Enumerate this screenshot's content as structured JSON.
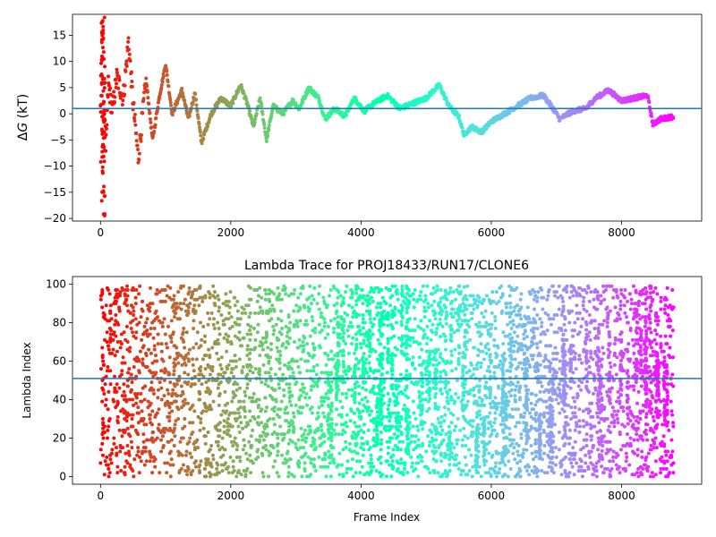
{
  "chart_data": [
    {
      "type": "scatter",
      "title": "",
      "xlabel": "",
      "ylabel": "ΔG (kT)",
      "ylabel_parts": {
        "delta": "Δ",
        "var": "G",
        "unit": " (kT)"
      },
      "xlim": [
        -430,
        9230
      ],
      "ylim": [
        -20.5,
        19.0
      ],
      "xticks": [
        0,
        2000,
        4000,
        6000,
        8000
      ],
      "yticks": [
        -20,
        -15,
        -10,
        -5,
        0,
        5,
        10,
        15
      ],
      "hline": {
        "y": 1.0,
        "color": "#1f77b4"
      },
      "colormap": "rainbow (red at start → violet at end of run)",
      "trace_segments": [
        {
          "x": 0,
          "y": 0.0
        },
        {
          "x": 40,
          "y": 18.5
        },
        {
          "x": 80,
          "y": -8.0
        },
        {
          "x": 120,
          "y": 6.0
        },
        {
          "x": 180,
          "y": 0.5
        },
        {
          "x": 250,
          "y": 7.0
        },
        {
          "x": 350,
          "y": 3.0
        },
        {
          "x": 430,
          "y": 14.0
        },
        {
          "x": 500,
          "y": 2.0
        },
        {
          "x": 580,
          "y": -8.5
        },
        {
          "x": 700,
          "y": 6.5
        },
        {
          "x": 800,
          "y": -5.0
        },
        {
          "x": 900,
          "y": 3.0
        },
        {
          "x": 1000,
          "y": 9.5
        },
        {
          "x": 1100,
          "y": 0.0
        },
        {
          "x": 1250,
          "y": 4.5
        },
        {
          "x": 1350,
          "y": -1.0
        },
        {
          "x": 1450,
          "y": 4.0
        },
        {
          "x": 1550,
          "y": -5.5
        },
        {
          "x": 1700,
          "y": 0.0
        },
        {
          "x": 1850,
          "y": 3.0
        },
        {
          "x": 2000,
          "y": 1.5
        },
        {
          "x": 2150,
          "y": 5.5
        },
        {
          "x": 2250,
          "y": 2.0
        },
        {
          "x": 2350,
          "y": -2.5
        },
        {
          "x": 2450,
          "y": 3.0
        },
        {
          "x": 2550,
          "y": -5.0
        },
        {
          "x": 2650,
          "y": 1.5
        },
        {
          "x": 2800,
          "y": 0.0
        },
        {
          "x": 2950,
          "y": 2.5
        },
        {
          "x": 3050,
          "y": 1.0
        },
        {
          "x": 3200,
          "y": 5.0
        },
        {
          "x": 3350,
          "y": 3.0
        },
        {
          "x": 3450,
          "y": -1.0
        },
        {
          "x": 3600,
          "y": 1.0
        },
        {
          "x": 3750,
          "y": -0.5
        },
        {
          "x": 3900,
          "y": 3.0
        },
        {
          "x": 4050,
          "y": 0.5
        },
        {
          "x": 4200,
          "y": 2.0
        },
        {
          "x": 4400,
          "y": 3.5
        },
        {
          "x": 4600,
          "y": 1.0
        },
        {
          "x": 4800,
          "y": 2.0
        },
        {
          "x": 5000,
          "y": 3.0
        },
        {
          "x": 5200,
          "y": 5.5
        },
        {
          "x": 5350,
          "y": 1.5
        },
        {
          "x": 5500,
          "y": -0.5
        },
        {
          "x": 5580,
          "y": -4.0
        },
        {
          "x": 5700,
          "y": -2.5
        },
        {
          "x": 5850,
          "y": -3.5
        },
        {
          "x": 6000,
          "y": -1.5
        },
        {
          "x": 6200,
          "y": 0.0
        },
        {
          "x": 6400,
          "y": 1.5
        },
        {
          "x": 6600,
          "y": 3.0
        },
        {
          "x": 6800,
          "y": 3.5
        },
        {
          "x": 6950,
          "y": 1.0
        },
        {
          "x": 7050,
          "y": -1.0
        },
        {
          "x": 7250,
          "y": 0.5
        },
        {
          "x": 7450,
          "y": 1.0
        },
        {
          "x": 7600,
          "y": 3.0
        },
        {
          "x": 7800,
          "y": 4.5
        },
        {
          "x": 8000,
          "y": 2.5
        },
        {
          "x": 8200,
          "y": 3.0
        },
        {
          "x": 8400,
          "y": 3.5
        },
        {
          "x": 8480,
          "y": -2.0
        },
        {
          "x": 8600,
          "y": -1.0
        },
        {
          "x": 8800,
          "y": -0.5
        }
      ],
      "trace_extent": {
        "x_start": 0,
        "x_end": 8800
      }
    },
    {
      "type": "scatter",
      "title": "Lambda Trace for PROJ18433/RUN17/CLONE6",
      "xlabel": "Frame Index",
      "ylabel": "Lambda Index",
      "xlim": [
        -430,
        9230
      ],
      "ylim": [
        -4,
        104
      ],
      "xticks": [
        0,
        2000,
        4000,
        6000,
        8000
      ],
      "yticks": [
        0,
        20,
        40,
        60,
        80,
        100
      ],
      "hline": {
        "y": 51,
        "color": "#1f77b4"
      },
      "colormap": "rainbow (red at start → violet at end of run)",
      "lambda_range": [
        0,
        99
      ],
      "x_range": [
        0,
        8800
      ],
      "description_of_points": "dense random scatter of lambda index values 0–99 across frames"
    }
  ]
}
